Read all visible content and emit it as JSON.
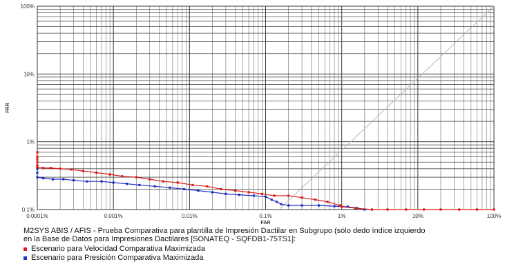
{
  "chart_data": {
    "type": "line",
    "xlabel": "FAR",
    "ylabel": "FRR",
    "x_scale": "log",
    "y_scale": "log",
    "xlim": [
      0.0001,
      100
    ],
    "ylim": [
      0.1,
      100
    ],
    "grid": true,
    "x_ticks": [
      {
        "value": 0.0001,
        "label": "0.0001%"
      },
      {
        "value": 0.001,
        "label": "0.001%"
      },
      {
        "value": 0.01,
        "label": "0.01%"
      },
      {
        "value": 0.1,
        "label": "0.1%"
      },
      {
        "value": 1,
        "label": "1%"
      },
      {
        "value": 10,
        "label": "10%"
      },
      {
        "value": 100,
        "label": "100%"
      }
    ],
    "y_ticks": [
      {
        "value": 0.1,
        "label": "0.1%"
      },
      {
        "value": 1,
        "label": "1%"
      },
      {
        "value": 10,
        "label": "10%"
      },
      {
        "value": 100,
        "label": "100%"
      }
    ],
    "reference_line": {
      "x": [
        0.15,
        100
      ],
      "y": [
        0.1,
        100
      ],
      "color": "#b8b8b8"
    },
    "caption_lines": [
      "M2SYS ABIS / AFIS - Prueba Comparativa para plantilla de Impresión Dactilar en Subgrupo (sólo dedo índice izquierdo",
      "en la Base de Datos para Impresiones Dactilares [SONATEQ - SQFDB1-75TS1]:"
    ],
    "legend_placement": "bottom",
    "series": [
      {
        "name": "Escenario para Velocidad Comparativa Maximizada",
        "color": "#d81b1b",
        "x": [
          0.0001,
          0.0001,
          0.0001,
          0.0001,
          0.0001,
          0.0001,
          0.0001,
          0.00012,
          0.00015,
          0.0002,
          0.00028,
          0.0004,
          0.0006,
          0.0009,
          0.0013,
          0.002,
          0.003,
          0.0045,
          0.007,
          0.011,
          0.017,
          0.026,
          0.04,
          0.06,
          0.09,
          0.13,
          0.2,
          0.3,
          0.45,
          0.65,
          0.95,
          1.0,
          1.5,
          2.5,
          4,
          7,
          12,
          20,
          35,
          60,
          100
        ],
        "y": [
          0.7,
          0.6,
          0.55,
          0.5,
          0.45,
          0.43,
          0.42,
          0.41,
          0.41,
          0.4,
          0.39,
          0.37,
          0.35,
          0.33,
          0.31,
          0.3,
          0.28,
          0.26,
          0.25,
          0.23,
          0.22,
          0.2,
          0.19,
          0.18,
          0.17,
          0.16,
          0.16,
          0.15,
          0.14,
          0.13,
          0.115,
          0.11,
          0.105,
          0.1,
          0.1,
          0.1,
          0.1,
          0.1,
          0.1,
          0.1,
          0.1
        ]
      },
      {
        "name": "Escenario para Presición Comparativa Maximizada",
        "color": "#1f2fbf",
        "x": [
          0.0001,
          0.0001,
          0.0001,
          0.00012,
          0.00016,
          0.00022,
          0.0003,
          0.00045,
          0.0007,
          0.001,
          0.0015,
          0.0022,
          0.0035,
          0.0055,
          0.0085,
          0.013,
          0.02,
          0.03,
          0.045,
          0.07,
          0.1,
          0.12,
          0.14,
          0.16,
          0.2,
          0.3,
          0.5,
          0.8,
          1.2,
          1.6,
          2.0
        ],
        "y": [
          0.4,
          0.35,
          0.3,
          0.29,
          0.28,
          0.28,
          0.27,
          0.26,
          0.26,
          0.25,
          0.24,
          0.23,
          0.22,
          0.21,
          0.2,
          0.19,
          0.18,
          0.17,
          0.165,
          0.16,
          0.155,
          0.14,
          0.13,
          0.12,
          0.115,
          0.115,
          0.115,
          0.112,
          0.11,
          0.105,
          0.1
        ]
      }
    ]
  }
}
